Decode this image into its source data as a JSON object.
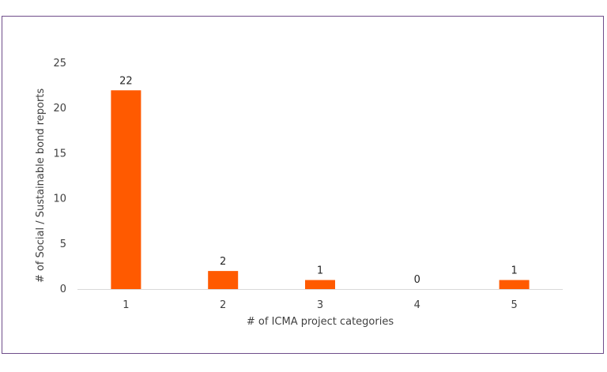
{
  "chart_data": {
    "type": "bar",
    "title": "",
    "xlabel": "# of ICMA project categories",
    "ylabel": "# of Social / Sustainable bond reports",
    "categories": [
      "1",
      "2",
      "3",
      "4",
      "5"
    ],
    "values": [
      22,
      2,
      1,
      0,
      1
    ],
    "data_labels": [
      "22",
      "2",
      "1",
      "0",
      "1"
    ],
    "yticks": [
      "0",
      "5",
      "10",
      "15",
      "20",
      "25"
    ],
    "ylim": [
      0,
      25
    ],
    "grid": false,
    "legend": "none",
    "bar_color": "#ff5a00",
    "axis_color": "#d9d9d9"
  }
}
